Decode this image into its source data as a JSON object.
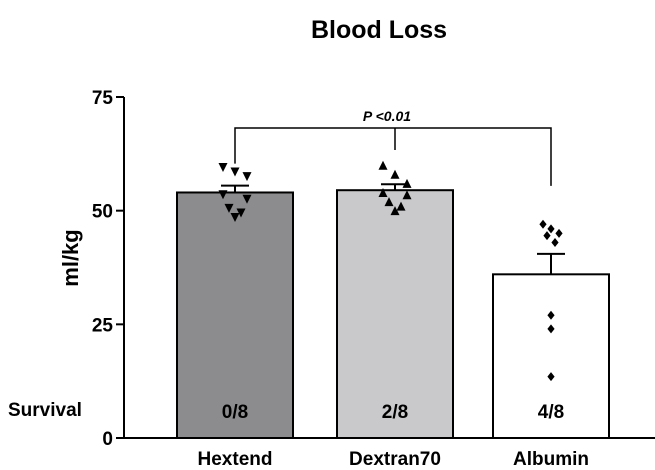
{
  "chart_data": {
    "type": "bar",
    "title": "Blood Loss",
    "ylabel": "ml/kg",
    "xlabel": "",
    "ylim": [
      0,
      75
    ],
    "yticks": [
      0,
      25,
      50,
      75
    ],
    "categories": [
      "Hextend",
      "Dextran70",
      "Albumin"
    ],
    "values": [
      54,
      54.5,
      36
    ],
    "errors": [
      1.5,
      1.3,
      4.5
    ],
    "bar_colors": [
      "#8c8c8e",
      "#c9c9cb",
      "#ffffff"
    ],
    "marker_shapes": [
      "triangle-down",
      "triangle-up",
      "diamond"
    ],
    "points": [
      [
        59.5,
        58.5,
        57.5,
        53.5,
        52.5,
        50.5,
        49.5,
        48.5
      ],
      [
        60,
        58,
        56,
        54,
        53.5,
        52,
        51,
        50
      ],
      [
        47,
        46,
        45,
        44.5,
        43,
        27,
        24,
        13.5
      ]
    ],
    "survival_label": "Survival",
    "survival": [
      "0/8",
      "2/8",
      "4/8"
    ],
    "significance": {
      "label": "P <0.01",
      "from": "Hextend",
      "to": "Albumin"
    }
  }
}
